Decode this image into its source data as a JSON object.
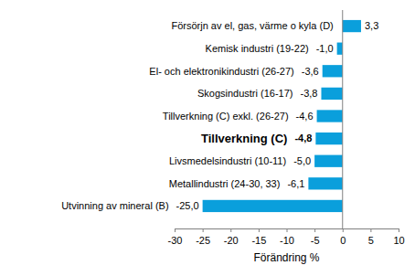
{
  "chart_data": {
    "type": "bar",
    "orientation": "horizontal",
    "categories": [
      "Försörjn av el, gas, värme o kyla (D)",
      "Kemisk industri (19-22)",
      "El- och elektronikindustri (26-27)",
      "Skogsindustri (16-17)",
      "Tillverkning (C) exkl. (26-27)",
      "Tillverkning (C)",
      "Livsmedelsindustri (10-11)",
      "Metallindustri (24-30, 33)",
      "Utvinning av mineral (B)"
    ],
    "values": [
      3.3,
      -1.0,
      -3.6,
      -3.8,
      -4.6,
      -4.8,
      -5.0,
      -6.1,
      -25.0
    ],
    "value_labels": [
      "3,3",
      "-1,0",
      "-3,6",
      "-3,8",
      "-4,6",
      "-4,8",
      "-5,0",
      "-6,1",
      "-25,0"
    ],
    "data_labels": true,
    "color": "#0a9fdc",
    "xlabel": "Förändring %",
    "xlim": [
      -30,
      10
    ],
    "xticks": [
      -30,
      -25,
      -20,
      -15,
      -10,
      -5,
      0,
      5,
      10
    ],
    "grid": false
  }
}
